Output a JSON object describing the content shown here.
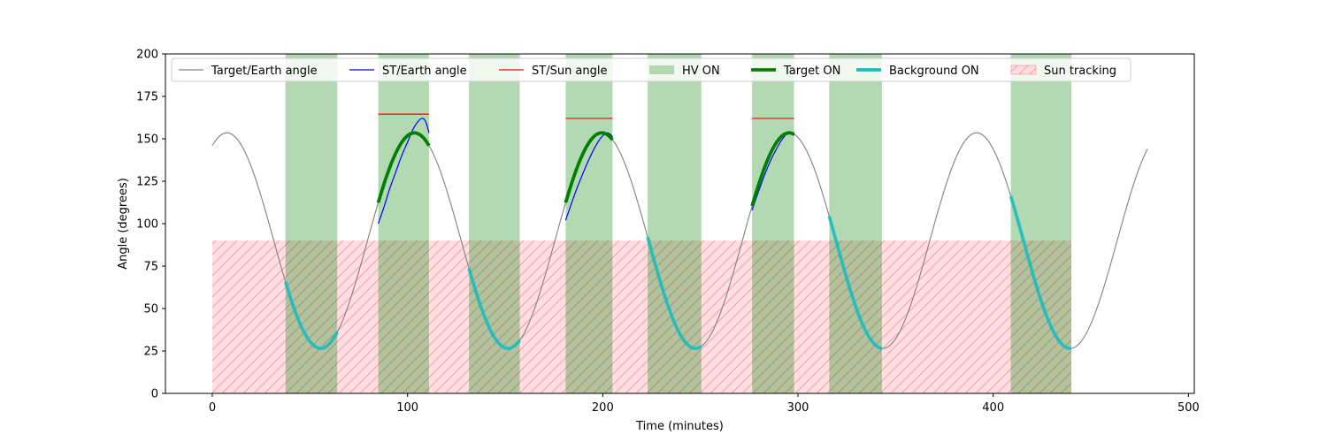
{
  "chart_data": {
    "type": "line",
    "xlabel": "Time (minutes)",
    "ylabel": "Angle (degrees)",
    "xlim": [
      -24,
      503
    ],
    "ylim": [
      0,
      200
    ],
    "x_ticks": [
      0,
      100,
      200,
      300,
      400,
      500
    ],
    "y_ticks": [
      0,
      25,
      50,
      75,
      100,
      125,
      150,
      175,
      200
    ],
    "grid": false,
    "legend_position": "top",
    "legend": [
      {
        "label": "Target/Earth angle",
        "kind": "line",
        "color": "#808080"
      },
      {
        "label": "ST/Earth angle",
        "kind": "line",
        "color": "#0000ff"
      },
      {
        "label": "ST/Sun angle",
        "kind": "line",
        "color": "#ff0000"
      },
      {
        "label": "HV ON",
        "kind": "patch",
        "color": "#b2d8b2"
      },
      {
        "label": "Target ON",
        "kind": "thick-line",
        "color": "#008000"
      },
      {
        "label": "Background ON",
        "kind": "thick-line",
        "color": "#17bfbf"
      },
      {
        "label": "Sun tracking",
        "kind": "hatch",
        "color": "#f4a3a3"
      }
    ],
    "target_earth_angle": {
      "period_min": 96,
      "center_deg": 90,
      "amplitude_deg": 63.5,
      "peak_time_min": 7.5,
      "x_range": [
        0,
        479
      ]
    },
    "hv_on_intervals": [
      [
        37.5,
        64
      ],
      [
        85,
        111
      ],
      [
        131.5,
        157.5
      ],
      [
        181,
        205
      ],
      [
        223,
        250.5
      ],
      [
        276.5,
        298
      ],
      [
        316,
        343
      ],
      [
        409,
        440
      ]
    ],
    "target_on_intervals": [
      [
        85,
        111
      ],
      [
        181,
        205
      ],
      [
        276.5,
        298
      ]
    ],
    "background_on_intervals": [
      [
        37.5,
        64
      ],
      [
        131.5,
        157.5
      ],
      [
        223,
        250.5
      ],
      [
        316,
        343
      ],
      [
        409,
        440
      ]
    ],
    "st_earth_angle": [
      [
        [
          85,
          100
        ],
        [
          88,
          110
        ],
        [
          91,
          121
        ],
        [
          94,
          130.5
        ],
        [
          97,
          140
        ],
        [
          100,
          148
        ],
        [
          103,
          156
        ],
        [
          106,
          161
        ],
        [
          108,
          162
        ],
        [
          109.5,
          159.5
        ],
        [
          111,
          153.5
        ]
      ],
      [
        [
          181,
          102
        ],
        [
          184,
          112
        ],
        [
          187,
          121.5
        ],
        [
          190,
          130
        ],
        [
          193,
          138
        ],
        [
          196,
          145
        ],
        [
          199,
          150.5
        ],
        [
          202,
          153.5
        ],
        [
          204,
          152.5
        ],
        [
          205,
          151
        ]
      ],
      [
        [
          276.5,
          108
        ],
        [
          279.5,
          118
        ],
        [
          282.5,
          127.5
        ],
        [
          285.5,
          136
        ],
        [
          288.5,
          143
        ],
        [
          291.5,
          149
        ],
        [
          294.5,
          153
        ],
        [
          296.5,
          153.5
        ],
        [
          298,
          152
        ]
      ]
    ],
    "st_sun_angle": [
      {
        "x": [
          85,
          111
        ],
        "y": 164.5
      },
      {
        "x": [
          181,
          205
        ],
        "y": 162
      },
      {
        "x": [
          276.5,
          298
        ],
        "y": 162
      }
    ],
    "sun_tracking": {
      "x": [
        0,
        440
      ],
      "y": [
        0,
        90
      ]
    }
  }
}
